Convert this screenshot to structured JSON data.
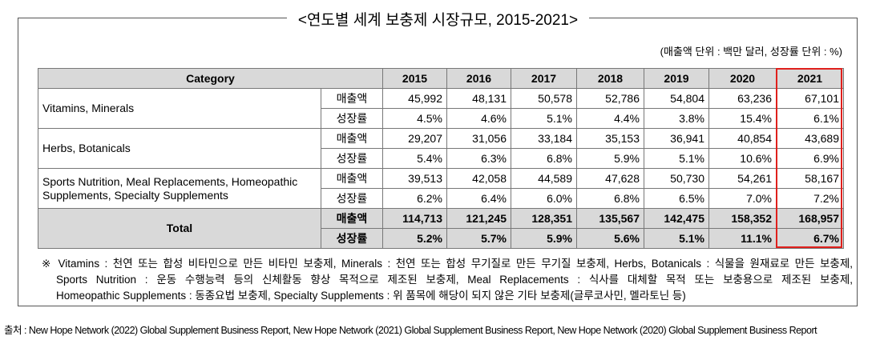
{
  "title": "<연도별 세계 보충제 시장규모, 2015-2021>",
  "unit_note": "(매출액 단위 : 백만 달러, 성장률 단위 : %)",
  "table": {
    "header": [
      "Category",
      "2015",
      "2016",
      "2017",
      "2018",
      "2019",
      "2020",
      "2021"
    ],
    "groups": [
      {
        "category": "Vitamins, Minerals",
        "rows": [
          {
            "label": "매출액",
            "values": [
              "45,992",
              "48,131",
              "50,578",
              "52,786",
              "54,804",
              "63,236",
              "67,101"
            ]
          },
          {
            "label": "성장률",
            "values": [
              "4.5%",
              "4.6%",
              "5.1%",
              "4.4%",
              "3.8%",
              "15.4%",
              "6.1%"
            ]
          }
        ]
      },
      {
        "category": "Herbs, Botanicals",
        "rows": [
          {
            "label": "매출액",
            "values": [
              "29,207",
              "31,056",
              "33,184",
              "35,153",
              "36,941",
              "40,854",
              "43,689"
            ]
          },
          {
            "label": "성장률",
            "values": [
              "5.4%",
              "6.3%",
              "6.8%",
              "5.9%",
              "5.1%",
              "10.6%",
              "6.9%"
            ]
          }
        ]
      },
      {
        "category": "Sports Nutrition, Meal Replacements, Homeopathic Supplements, Specialty Supplements",
        "rows": [
          {
            "label": "매출액",
            "values": [
              "39,513",
              "42,058",
              "44,589",
              "47,628",
              "50,730",
              "54,261",
              "58,167"
            ]
          },
          {
            "label": "성장률",
            "values": [
              "6.2%",
              "6.4%",
              "6.0%",
              "6.8%",
              "6.5%",
              "7.0%",
              "7.2%"
            ]
          }
        ]
      },
      {
        "category": "Total",
        "rows": [
          {
            "label": "매출액",
            "values": [
              "114,713",
              "121,245",
              "128,351",
              "135,567",
              "142,475",
              "158,352",
              "168,957"
            ]
          },
          {
            "label": "성장률",
            "values": [
              "5.2%",
              "5.7%",
              "5.9%",
              "5.6%",
              "5.1%",
              "11.1%",
              "6.7%"
            ]
          }
        ]
      }
    ]
  },
  "notes": [
    "※ Vitamins : 천연 또는 합성 비타민으로 만든 비타민 보충제, Minerals : 천연 또는 합성 무기질로 만든 무기질 보충제, Herbs, Botanicals : 식물을 원재료로 만든 보충제,",
    "Sports Nutrition : 운동 수행능력 등의 신체활동 향상 목적으로 제조된 보충제, Meal Replacements : 식사를 대체할 목적 또는 보충용으로 제조된 보충제,",
    "Homeopathic Supplements : 동종요법 보충제, Specialty Supplements : 위 품목에 해당이 되지 않은 기타 보충제(글루코사민, 멜라토닌 등)"
  ],
  "source": "출처 : New Hope Network (2022) Global Supplement Business Report, New Hope Network (2021) Global Supplement Business Report, New Hope Network (2020) Global Supplement Business Report"
}
